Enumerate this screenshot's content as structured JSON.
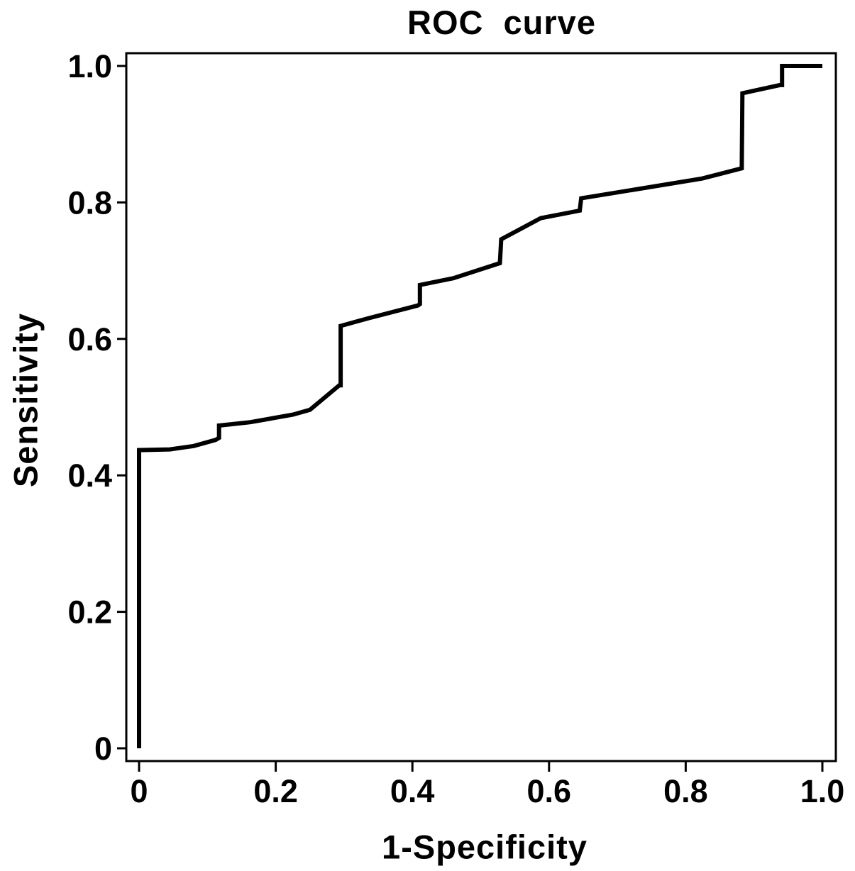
{
  "figure": {
    "background_color": "#ffffff",
    "line_color": "#000000"
  },
  "chart_data": {
    "type": "line",
    "title": "ROC curve",
    "xlabel": "1-Specificity",
    "ylabel": "Sensitivity",
    "xlim": [
      0,
      1
    ],
    "ylim": [
      0,
      1
    ],
    "grid": false,
    "legend": "none",
    "frame": "full-box",
    "x_ticks": [
      0,
      0.2,
      0.4,
      0.6,
      0.8,
      1.0
    ],
    "x_tick_labels": [
      "0",
      "0.2",
      "0.4",
      "0.6",
      "0.8",
      "1.0"
    ],
    "y_ticks": [
      0,
      0.2,
      0.4,
      0.6,
      0.8,
      1.0
    ],
    "y_tick_labels": [
      "0",
      "0.2",
      "0.4",
      "0.6",
      "0.8",
      "1.0"
    ],
    "series": [
      {
        "name": "ROC curve",
        "color": "#000000",
        "line_width": 6,
        "points": [
          [
            0.0,
            0.0
          ],
          [
            0.0,
            0.437
          ],
          [
            0.045,
            0.438
          ],
          [
            0.08,
            0.443
          ],
          [
            0.112,
            0.452
          ],
          [
            0.117,
            0.455
          ],
          [
            0.117,
            0.473
          ],
          [
            0.163,
            0.478
          ],
          [
            0.225,
            0.489
          ],
          [
            0.25,
            0.496
          ],
          [
            0.293,
            0.532
          ],
          [
            0.295,
            0.532
          ],
          [
            0.295,
            0.619
          ],
          [
            0.335,
            0.63
          ],
          [
            0.408,
            0.649
          ],
          [
            0.411,
            0.651
          ],
          [
            0.411,
            0.679
          ],
          [
            0.46,
            0.689
          ],
          [
            0.528,
            0.711
          ],
          [
            0.53,
            0.746
          ],
          [
            0.588,
            0.777
          ],
          [
            0.645,
            0.788
          ],
          [
            0.647,
            0.806
          ],
          [
            0.824,
            0.835
          ],
          [
            0.882,
            0.85
          ],
          [
            0.883,
            0.96
          ],
          [
            0.938,
            0.972
          ],
          [
            0.941,
            0.972
          ],
          [
            0.941,
            1.0
          ],
          [
            1.0,
            1.0
          ]
        ]
      }
    ]
  }
}
